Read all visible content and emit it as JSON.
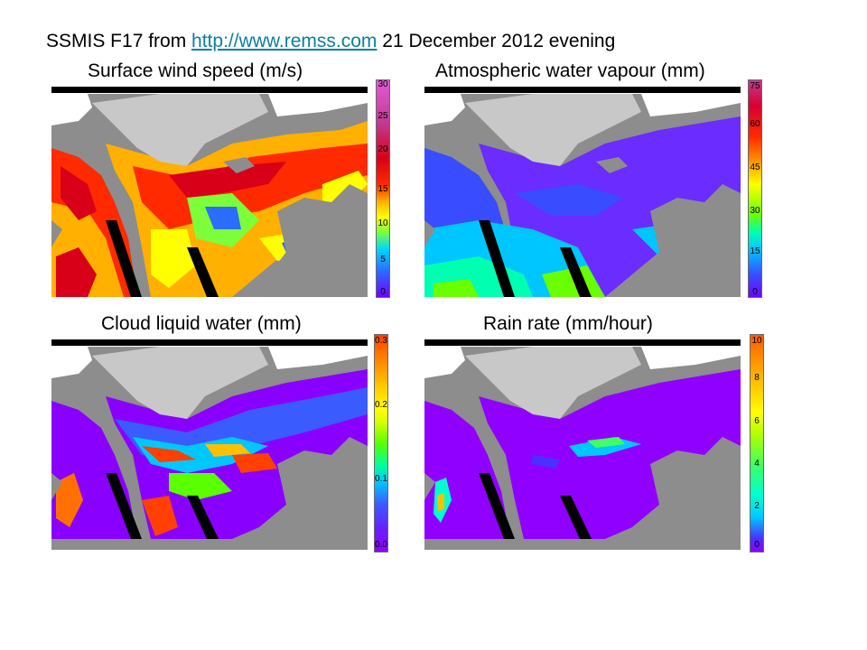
{
  "header": {
    "prefix": "SSMIS F17 from ",
    "link_text": "http://www.remss.com",
    "suffix": " 21 December 2012 evening"
  },
  "panels": [
    {
      "title": "Surface wind speed (m/s)",
      "colorbar_ticks": [
        "30",
        "25",
        "20",
        "15",
        "10",
        "5",
        "0"
      ]
    },
    {
      "title": "Atmospheric water vapour (mm)",
      "colorbar_ticks": [
        "75",
        "60",
        "45",
        "30",
        "15",
        "0"
      ]
    },
    {
      "title": "Cloud liquid water (mm)",
      "colorbar_ticks": [
        "0.3",
        "0.2",
        "0.1",
        "0.0"
      ]
    },
    {
      "title": "Rain rate (mm/hour)",
      "colorbar_ticks": [
        "10",
        "8",
        "6",
        "4",
        "2",
        "0"
      ]
    }
  ],
  "colors": {
    "land": "#8d8d8d",
    "ice": "#c8c8c8",
    "no_data": "#000000",
    "link": "#0a7f9f"
  }
}
